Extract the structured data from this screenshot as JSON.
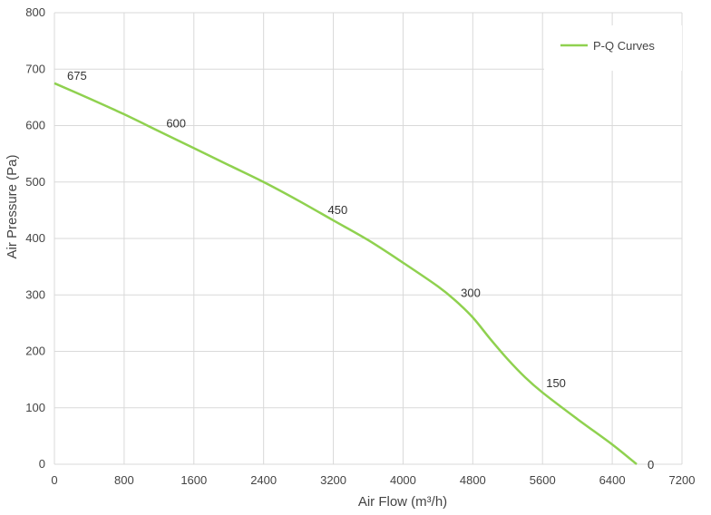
{
  "chart_data": {
    "type": "line",
    "title": "",
    "xlabel": "Air Flow  (m³/h)",
    "ylabel": "Air Pressure  (Pa)",
    "xlim": [
      0,
      7200
    ],
    "ylim": [
      0,
      800
    ],
    "x_ticks": [
      0,
      800,
      1600,
      2400,
      3200,
      4000,
      4800,
      5600,
      6400,
      7200
    ],
    "y_ticks": [
      0,
      100,
      200,
      300,
      400,
      500,
      600,
      700,
      800
    ],
    "grid": true,
    "legend_position": "top-right",
    "series": [
      {
        "name": "P-Q Curves",
        "color": "#8fd14f",
        "x": [
          0,
          400,
          800,
          1200,
          1600,
          2000,
          2400,
          2800,
          3200,
          3600,
          4000,
          4400,
          4600,
          4800,
          5000,
          5200,
          5400,
          5600,
          6000,
          6400,
          6680
        ],
        "y": [
          675,
          648,
          620,
          590,
          560,
          530,
          500,
          467,
          432,
          397,
          357,
          315,
          290,
          260,
          222,
          186,
          154,
          127,
          80,
          35,
          0
        ]
      }
    ],
    "annotations": [
      {
        "text": "675",
        "x": 0,
        "y": 675
      },
      {
        "text": "600",
        "x": 1200,
        "y": 590
      },
      {
        "text": "450",
        "x": 3200,
        "y": 432
      },
      {
        "text": "300",
        "x": 4600,
        "y": 290
      },
      {
        "text": "150",
        "x": 5600,
        "y": 127
      },
      {
        "text": "0",
        "x": 6680,
        "y": 0
      }
    ]
  }
}
